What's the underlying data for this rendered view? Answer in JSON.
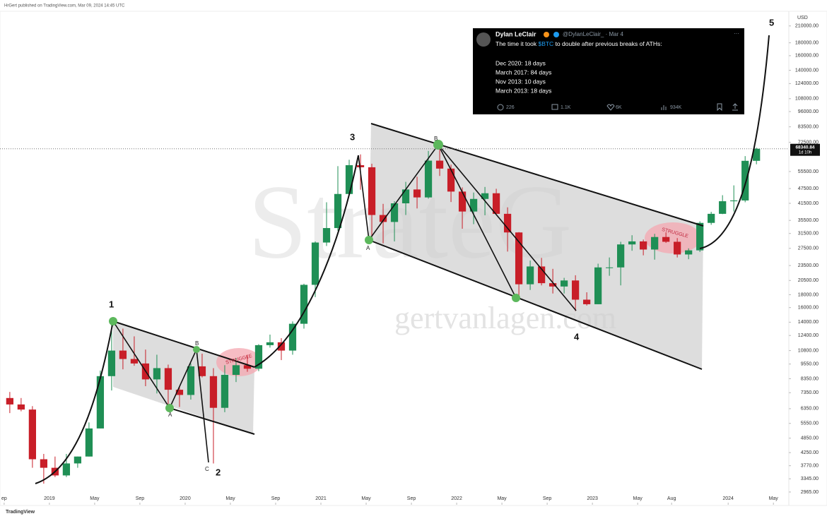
{
  "header": "HrGert published on TradingView.com, Mar 09, 2024 14:45 UTC",
  "footer": "TradingView",
  "watermark": {
    "brand": "StrateG",
    "site": "gertvanlagen.com"
  },
  "annotations": {
    "waves": [
      "1",
      "2",
      "3",
      "4",
      "5"
    ],
    "points": [
      "A",
      "B",
      "C",
      "A",
      "B"
    ],
    "struggle": "STRUGGLE"
  },
  "tweet": {
    "name": "Dylan LeClair",
    "handle": "@DylanLeClair_ · Mar 4",
    "text_pre": "The time it took ",
    "cashtag": "$BTC",
    "text_post": " to double after previous breaks of ATHs:",
    "lines": [
      "Dec 2020: 18 days",
      "March 2017: 84 days",
      "Nov 2013: 10 days",
      "March 2013: 18 days"
    ],
    "stats": [
      "226",
      "1.1K",
      "6K",
      "934K"
    ]
  },
  "chart_data": {
    "type": "candlestick",
    "currency": "USD",
    "log_scale": true,
    "up_color": "#1f8f55",
    "down_color": "#c81e28",
    "x": [
      "2018-09",
      "2018-10",
      "2018-11",
      "2018-12",
      "2019-01",
      "2019-02",
      "2019-03",
      "2019-04",
      "2019-05",
      "2019-06",
      "2019-07",
      "2019-08",
      "2019-09",
      "2019-10",
      "2019-11",
      "2019-12",
      "2020-01",
      "2020-02",
      "2020-03",
      "2020-04",
      "2020-05",
      "2020-06",
      "2020-07",
      "2020-08",
      "2020-09",
      "2020-10",
      "2020-11",
      "2020-12",
      "2021-01",
      "2021-02",
      "2021-03",
      "2021-04",
      "2021-05",
      "2021-06",
      "2021-07",
      "2021-08",
      "2021-09",
      "2021-10",
      "2021-11",
      "2021-12",
      "2022-01",
      "2022-02",
      "2022-03",
      "2022-04",
      "2022-05",
      "2022-06",
      "2022-07",
      "2022-08",
      "2022-09",
      "2022-10",
      "2022-11",
      "2022-12",
      "2023-01",
      "2023-02",
      "2023-03",
      "2023-04",
      "2023-05",
      "2023-06",
      "2023-07",
      "2023-08",
      "2023-09",
      "2023-10",
      "2023-11",
      "2023-12",
      "2024-01",
      "2024-02",
      "2024-03"
    ],
    "open": [
      7000,
      6600,
      6300,
      4000,
      3700,
      3450,
      3850,
      4100,
      5300,
      8550,
      10800,
      10000,
      9600,
      8300,
      9200,
      7550,
      7200,
      9350,
      8550,
      6400,
      8650,
      9450,
      9150,
      11350,
      11650,
      10800,
      13800,
      19700,
      29000,
      33100,
      45200,
      58800,
      57700,
      37300,
      35000,
      41500,
      47100,
      43800,
      61300,
      57000,
      46200,
      38500,
      43200,
      45500,
      37700,
      31800,
      19800,
      23300,
      20000,
      19400,
      20500,
      17200,
      16500,
      23100,
      23100,
      28500,
      29300,
      27200,
      30500,
      29200,
      26000,
      27000,
      34700,
      37700,
      42300,
      42600,
      61200
    ],
    "high": [
      7400,
      7000,
      6500,
      4200,
      4100,
      4200,
      4100,
      5600,
      9000,
      13800,
      13200,
      12300,
      10900,
      10400,
      9500,
      7750,
      9600,
      10500,
      9200,
      9450,
      10100,
      10400,
      11450,
      12500,
      12100,
      14100,
      19900,
      29300,
      41900,
      58300,
      61800,
      64900,
      59600,
      41300,
      42300,
      50500,
      52900,
      67000,
      69000,
      59100,
      48000,
      45800,
      48200,
      47400,
      40000,
      31900,
      24600,
      25200,
      22800,
      21000,
      21500,
      18400,
      23900,
      25300,
      29200,
      31000,
      29800,
      31400,
      31800,
      30200,
      27500,
      35200,
      38400,
      44700,
      48900,
      63900,
      69000
    ],
    "low": [
      6100,
      6200,
      3700,
      3200,
      3400,
      3400,
      3700,
      4100,
      5300,
      7500,
      9100,
      9400,
      7800,
      7300,
      6500,
      6450,
      6900,
      8450,
      3850,
      6150,
      8100,
      8900,
      8950,
      11100,
      9900,
      10400,
      13200,
      17600,
      28100,
      32300,
      44900,
      47000,
      30000,
      28800,
      29300,
      37300,
      39600,
      43300,
      53300,
      42000,
      32900,
      34300,
      37200,
      37600,
      26700,
      17600,
      18800,
      19600,
      18200,
      18200,
      15500,
      16300,
      16500,
      21400,
      19600,
      26900,
      25800,
      24800,
      28900,
      25300,
      24900,
      26600,
      34100,
      37600,
      38500,
      41900,
      59300
    ],
    "close": [
      6600,
      6300,
      4000,
      3700,
      3450,
      3850,
      4100,
      5300,
      8550,
      10800,
      10000,
      9600,
      8300,
      9200,
      7550,
      7200,
      9350,
      8550,
      6400,
      8650,
      9450,
      9150,
      11350,
      11650,
      10800,
      13800,
      19700,
      29000,
      33100,
      45200,
      58800,
      57700,
      37300,
      35000,
      41500,
      47100,
      43800,
      61300,
      57000,
      46200,
      38500,
      43200,
      45500,
      37700,
      31800,
      19800,
      23300,
      20000,
      19400,
      20500,
      17200,
      16500,
      23100,
      23100,
      28500,
      29300,
      27200,
      30500,
      29200,
      26000,
      27000,
      34700,
      37700,
      42300,
      42600,
      61200,
      68340.84
    ],
    "last_price": 68340.84,
    "countdown": "1d 10h",
    "xlim": [
      "2018-08-20",
      "2024-06-10"
    ],
    "xticks": [
      {
        "value": "2018-09",
        "label": "ep"
      },
      {
        "value": "2019-01",
        "label": "2019"
      },
      {
        "value": "2019-05",
        "label": "May"
      },
      {
        "value": "2019-09",
        "label": "Sep"
      },
      {
        "value": "2020-01",
        "label": "2020"
      },
      {
        "value": "2020-05",
        "label": "May"
      },
      {
        "value": "2020-09",
        "label": "Sep"
      },
      {
        "value": "2021-01",
        "label": "2021"
      },
      {
        "value": "2021-05",
        "label": "May"
      },
      {
        "value": "2021-09",
        "label": "Sep"
      },
      {
        "value": "2022-01",
        "label": "2022"
      },
      {
        "value": "2022-05",
        "label": "May"
      },
      {
        "value": "2022-09",
        "label": "Sep"
      },
      {
        "value": "2023-01",
        "label": "2023"
      },
      {
        "value": "2023-05",
        "label": "May"
      },
      {
        "value": "2023-08",
        "label": "Aug"
      },
      {
        "value": "2024-01",
        "label": "2024"
      },
      {
        "value": "2024-05",
        "label": "May"
      }
    ],
    "ylim": [
      2690,
      237000
    ],
    "yticks": [
      {
        "value": 210000,
        "label": "210000.00"
      },
      {
        "value": 180000,
        "label": "180000.00"
      },
      {
        "value": 160000,
        "label": "160000.00"
      },
      {
        "value": 140000,
        "label": "140000.00"
      },
      {
        "value": 124000,
        "label": "124000.00"
      },
      {
        "value": 108000,
        "label": "108000.00"
      },
      {
        "value": 96000,
        "label": "96000.00"
      },
      {
        "value": 83500,
        "label": "83500.00"
      },
      {
        "value": 72500,
        "label": "72500.00"
      },
      {
        "value": 55500,
        "label": "55500.00"
      },
      {
        "value": 47500,
        "label": "47500.00"
      },
      {
        "value": 41500,
        "label": "41500.00"
      },
      {
        "value": 35500,
        "label": "35500.00"
      },
      {
        "value": 31500,
        "label": "31500.00"
      },
      {
        "value": 27500,
        "label": "27500.00"
      },
      {
        "value": 23500,
        "label": "23500.00"
      },
      {
        "value": 20500,
        "label": "20500.00"
      },
      {
        "value": 18000,
        "label": "18000.00"
      },
      {
        "value": 16000,
        "label": "16000.00"
      },
      {
        "value": 14000,
        "label": "14000.00"
      },
      {
        "value": 12400,
        "label": "12400.00"
      },
      {
        "value": 10800,
        "label": "10800.00"
      },
      {
        "value": 9550,
        "label": "9550.00"
      },
      {
        "value": 8350,
        "label": "8350.00"
      },
      {
        "value": 7350,
        "label": "7350.00"
      },
      {
        "value": 6350,
        "label": "6350.00"
      },
      {
        "value": 5550,
        "label": "5550.00"
      },
      {
        "value": 4850,
        "label": "4850.00"
      },
      {
        "value": 4250,
        "label": "4250.00"
      },
      {
        "value": 3770,
        "label": "3770.00"
      },
      {
        "value": 3345,
        "label": "3345.00"
      },
      {
        "value": 2965,
        "label": "2965.00"
      }
    ],
    "grid": false
  }
}
